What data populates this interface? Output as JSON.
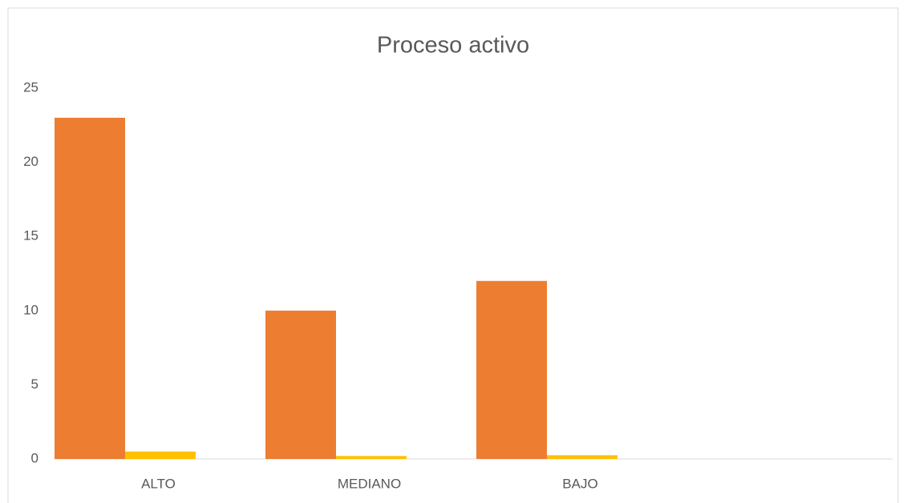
{
  "chart_data": {
    "type": "bar",
    "title": "Proceso activo",
    "categories": [
      "ALTO",
      "MEDIANO",
      "BAJO",
      null
    ],
    "series": [
      {
        "color": "#ed7d31",
        "values": [
          23,
          10,
          12,
          null
        ]
      },
      {
        "color": "#ffc000",
        "values": [
          0.5,
          0.2,
          0.25,
          null
        ]
      }
    ],
    "ylim": [
      0,
      25
    ],
    "yticks": [
      0,
      5,
      10,
      15,
      20,
      25
    ],
    "grid": false
  }
}
